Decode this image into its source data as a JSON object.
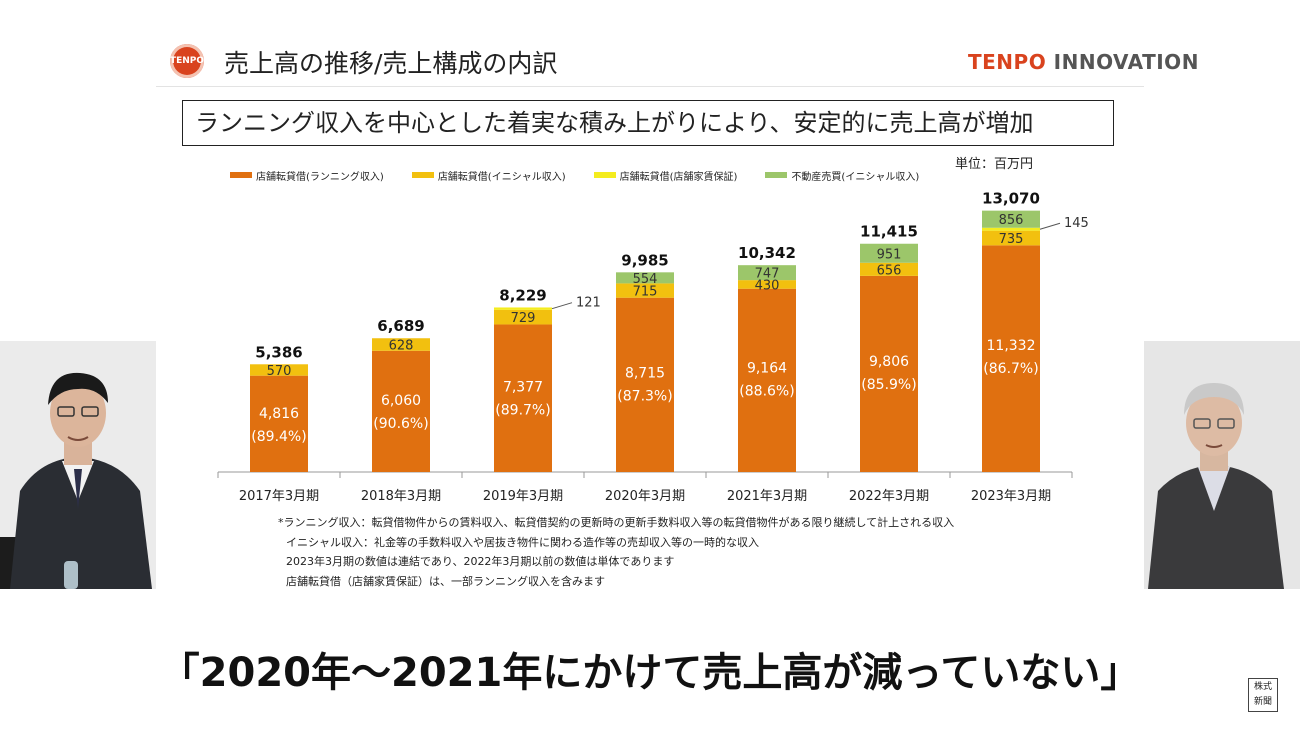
{
  "header": {
    "logo_text": "TENPO",
    "title": "売上高の推移/売上構成の内訳",
    "brand_part1": "TENPO",
    "brand_part2": "INNOVATION"
  },
  "subtitle": "ランニング収入を中心とした着実な積み上がりにより、安定的に売上高が増加",
  "unit_label": "単位：百万円",
  "colors": {
    "running": "#e07010",
    "initial": "#f2c00f",
    "guarantee": "#f4ec1e",
    "real_estate": "#9cc66a"
  },
  "chart_data": {
    "type": "bar",
    "stacked": true,
    "categories": [
      "2017年3月期",
      "2018年3月期",
      "2019年3月期",
      "2020年3月期",
      "2021年3月期",
      "2022年3月期",
      "2023年3月期"
    ],
    "series": [
      {
        "name": "店舗転貸借(ランニング収入)",
        "values": [
          4816,
          6060,
          7377,
          8715,
          9164,
          9806,
          11332
        ],
        "percent_labels": [
          "(89.4%)",
          "(90.6%)",
          "(89.7%)",
          "(87.3%)",
          "(88.6%)",
          "(85.9%)",
          "(86.7%)"
        ]
      },
      {
        "name": "店舗転貸借(イニシャル収入)",
        "values": [
          570,
          628,
          729,
          715,
          430,
          656,
          735
        ]
      },
      {
        "name": "店舗転貸借(店舗家賃保証)",
        "values": [
          null,
          null,
          121,
          null,
          null,
          null,
          145
        ]
      },
      {
        "name": "不動産売買(イニシャル収入)",
        "values": [
          null,
          null,
          null,
          554,
          747,
          951,
          856
        ]
      }
    ],
    "value_labels": [
      [
        "4,816",
        "6,060",
        "7,377",
        "8,715",
        "9,164",
        "9,806",
        "11,332"
      ],
      [
        "570",
        "628",
        "729",
        "715",
        "430",
        "656",
        "735"
      ],
      [
        null,
        null,
        "121",
        null,
        null,
        null,
        "145"
      ],
      [
        null,
        null,
        null,
        "554",
        "747",
        "951",
        "856"
      ]
    ],
    "totals": [
      5386,
      6689,
      8229,
      9985,
      10342,
      11415,
      13070
    ],
    "total_labels": [
      "5,386",
      "6,689",
      "8,229",
      "9,985",
      "10,342",
      "11,415",
      "13,070"
    ],
    "ylim": [
      0,
      13500
    ],
    "grid": false,
    "legend_position": "top"
  },
  "notes": [
    "*ランニング収入：転貸借物件からの賃料収入、転貸借契約の更新時の更新手数料収入等の転貸借物件がある限り継続して計上される収入",
    "イニシャル収入：礼金等の手数料収入や居抜き物件に関わる造作等の売却収入等の一時的な収入",
    "2023年3月期の数値は連結であり、2022年3月期以前の数値は単体であります",
    "店舗転貸借（店舗家賃保証）は、一部ランニング収入を含みます"
  ],
  "caption": "「2020年〜2021年にかけて売上高が減っていない」",
  "stamp": [
    "株式",
    "新聞"
  ]
}
